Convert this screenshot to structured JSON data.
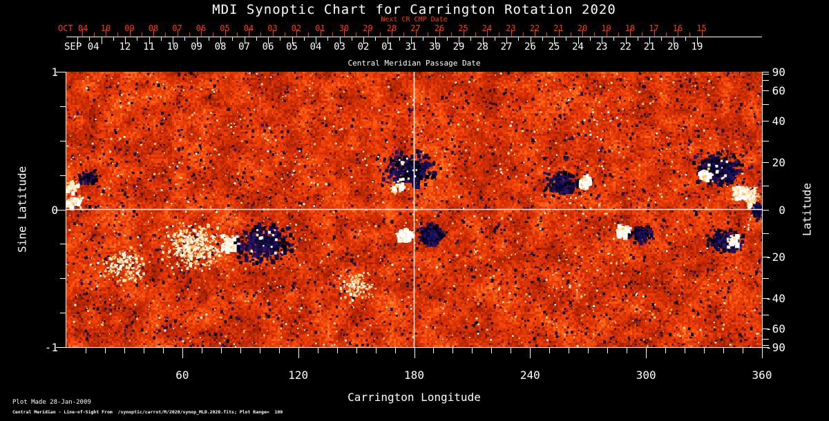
{
  "page": {
    "background": "#000000",
    "text_color": "#ffffff",
    "accent_red": "#ff3a00"
  },
  "footer": {
    "line1": "Plot Made 28-Jan-2009",
    "line2": "Central Meridian - Line-of-Sight From  /synoptic/carrot/M/2020/synop_MLD.2020.fits; Plot Range=  100"
  },
  "chart_data": {
    "type": "heatmap",
    "title": "MDI Synoptic Chart for Carrington Rotation 2020",
    "carrington_rotation": 2020,
    "plot_range_gauss": 100,
    "colormap_note": "orange-red noise background; dark blue/black = negative magnetic polarity; white/yellow = positive magnetic polarity",
    "reference_lines": {
      "equator_sine_latitude": 0,
      "meridian_longitude_deg": 180
    },
    "axes": {
      "top": {
        "next_cr_label": "Next CR CMP Date",
        "red_month": "OCT 04",
        "red_days": [
          "10",
          "09",
          "08",
          "07",
          "06",
          "05",
          "04",
          "03",
          "02",
          "01",
          "30",
          "29",
          "28",
          "27",
          "26",
          "25",
          "24",
          "23",
          "22",
          "21",
          "20",
          "19",
          "18",
          "17",
          "16",
          "15"
        ],
        "white_month": "SEP 04",
        "white_days": [
          "12",
          "11",
          "10",
          "09",
          "08",
          "07",
          "06",
          "05",
          "04",
          "03",
          "02",
          "01",
          "31",
          "30",
          "29",
          "28",
          "27",
          "26",
          "25",
          "24",
          "23",
          "22",
          "21",
          "20",
          "19"
        ],
        "label": "Central Meridian Passage Date",
        "red_color": "#ff3a00"
      },
      "bottom": {
        "label": "Carrington Longitude",
        "tick_labels": [
          "60",
          "120",
          "180",
          "240",
          "300",
          "360"
        ],
        "tick_values": [
          60,
          120,
          180,
          240,
          300,
          360
        ],
        "minor_step_deg": 10,
        "range_deg": [
          0,
          360
        ]
      },
      "left": {
        "label": "Sine Latitude",
        "tick_labels": [
          "1",
          "0",
          "-1"
        ],
        "tick_values": [
          1,
          0,
          -1
        ],
        "minor_step": 0.25,
        "range": [
          -1,
          1
        ]
      },
      "right": {
        "label": "Latitude",
        "tick_labels": [
          "90",
          "60",
          "40",
          "20",
          "0",
          "-20",
          "-40",
          "-60",
          "-90"
        ],
        "tick_values": [
          90,
          60,
          40,
          20,
          0,
          -20,
          -40,
          -60,
          -90
        ],
        "minor_step_deg": 10
      }
    },
    "background_palette": {
      "base_ramp": [
        "#500800",
        "#962000",
        "#d02c00",
        "#f54608",
        "#ff6e1e",
        "#ffaa5a"
      ],
      "negative_colors": [
        "#06042a",
        "#191058",
        "#2b1468",
        "#000000",
        "#0d0940"
      ],
      "positive_colors": [
        "#ffffff",
        "#ffeabb",
        "#ffc568"
      ],
      "diffuse_positive_colors": [
        "#fff1d0",
        "#ffd98e",
        "#ffffff",
        "#ffbd5a"
      ]
    },
    "active_regions": [
      {
        "lon_deg": 10.5,
        "sine_lat": 0.24,
        "rx_deg": 5,
        "ry_sine": 0.05,
        "polarity": "negative",
        "n": 70
      },
      {
        "lon_deg": 2,
        "sine_lat": 0.17,
        "rx_deg": 3,
        "ry_sine": 0.05,
        "polarity": "positive",
        "n": 35
      },
      {
        "lon_deg": 3,
        "sine_lat": 0.06,
        "rx_deg": 4,
        "ry_sine": 0.05,
        "polarity": "positive",
        "n": 45
      },
      {
        "lon_deg": 177,
        "sine_lat": 0.3,
        "rx_deg": 13,
        "ry_sine": 0.13,
        "polarity": "negative",
        "n": 300
      },
      {
        "lon_deg": 171,
        "sine_lat": 0.17,
        "rx_deg": 4,
        "ry_sine": 0.04,
        "polarity": "positive",
        "n": 30
      },
      {
        "lon_deg": 256,
        "sine_lat": 0.2,
        "rx_deg": 9,
        "ry_sine": 0.09,
        "polarity": "negative",
        "n": 190
      },
      {
        "lon_deg": 268,
        "sine_lat": 0.21,
        "rx_deg": 3.5,
        "ry_sine": 0.05,
        "polarity": "positive",
        "n": 70
      },
      {
        "lon_deg": 337,
        "sine_lat": 0.3,
        "rx_deg": 12,
        "ry_sine": 0.12,
        "polarity": "negative",
        "n": 330
      },
      {
        "lon_deg": 330,
        "sine_lat": 0.26,
        "rx_deg": 3,
        "ry_sine": 0.04,
        "polarity": "positive",
        "n": 50
      },
      {
        "lon_deg": 348,
        "sine_lat": 0.13,
        "rx_deg": 4,
        "ry_sine": 0.05,
        "polarity": "positive",
        "n": 100
      },
      {
        "lon_deg": 354,
        "sine_lat": 0.09,
        "rx_deg": 4,
        "ry_sine": 0.08,
        "polarity": "positive-diffuse",
        "n": 130
      },
      {
        "lon_deg": 357,
        "sine_lat": 0.0,
        "rx_deg": 3,
        "ry_sine": 0.06,
        "polarity": "negative",
        "n": 70
      },
      {
        "lon_deg": 66,
        "sine_lat": -0.26,
        "rx_deg": 16,
        "ry_sine": 0.16,
        "polarity": "positive-diffuse",
        "n": 400
      },
      {
        "lon_deg": 84.5,
        "sine_lat": -0.24,
        "rx_deg": 4.5,
        "ry_sine": 0.06,
        "polarity": "positive",
        "n": 120
      },
      {
        "lon_deg": 102,
        "sine_lat": -0.23,
        "rx_deg": 15,
        "ry_sine": 0.15,
        "polarity": "negative",
        "n": 330
      },
      {
        "lon_deg": 30,
        "sine_lat": -0.4,
        "rx_deg": 13,
        "ry_sine": 0.13,
        "polarity": "positive-diffuse",
        "n": 150
      },
      {
        "lon_deg": 174.5,
        "sine_lat": -0.18,
        "rx_deg": 4,
        "ry_sine": 0.05,
        "polarity": "positive",
        "n": 85
      },
      {
        "lon_deg": 188,
        "sine_lat": -0.17,
        "rx_deg": 7,
        "ry_sine": 0.08,
        "polarity": "negative",
        "n": 170
      },
      {
        "lon_deg": 287.5,
        "sine_lat": -0.15,
        "rx_deg": 4,
        "ry_sine": 0.05,
        "polarity": "positive",
        "n": 75
      },
      {
        "lon_deg": 297,
        "sine_lat": -0.17,
        "rx_deg": 6,
        "ry_sine": 0.06,
        "polarity": "negative",
        "n": 120
      },
      {
        "lon_deg": 340,
        "sine_lat": -0.22,
        "rx_deg": 9,
        "ry_sine": 0.08,
        "polarity": "negative",
        "n": 210
      },
      {
        "lon_deg": 344,
        "sine_lat": -0.22,
        "rx_deg": 2.5,
        "ry_sine": 0.04,
        "polarity": "positive",
        "n": 40
      },
      {
        "lon_deg": 150,
        "sine_lat": -0.55,
        "rx_deg": 10,
        "ry_sine": 0.1,
        "polarity": "positive-diffuse",
        "n": 100
      }
    ]
  }
}
